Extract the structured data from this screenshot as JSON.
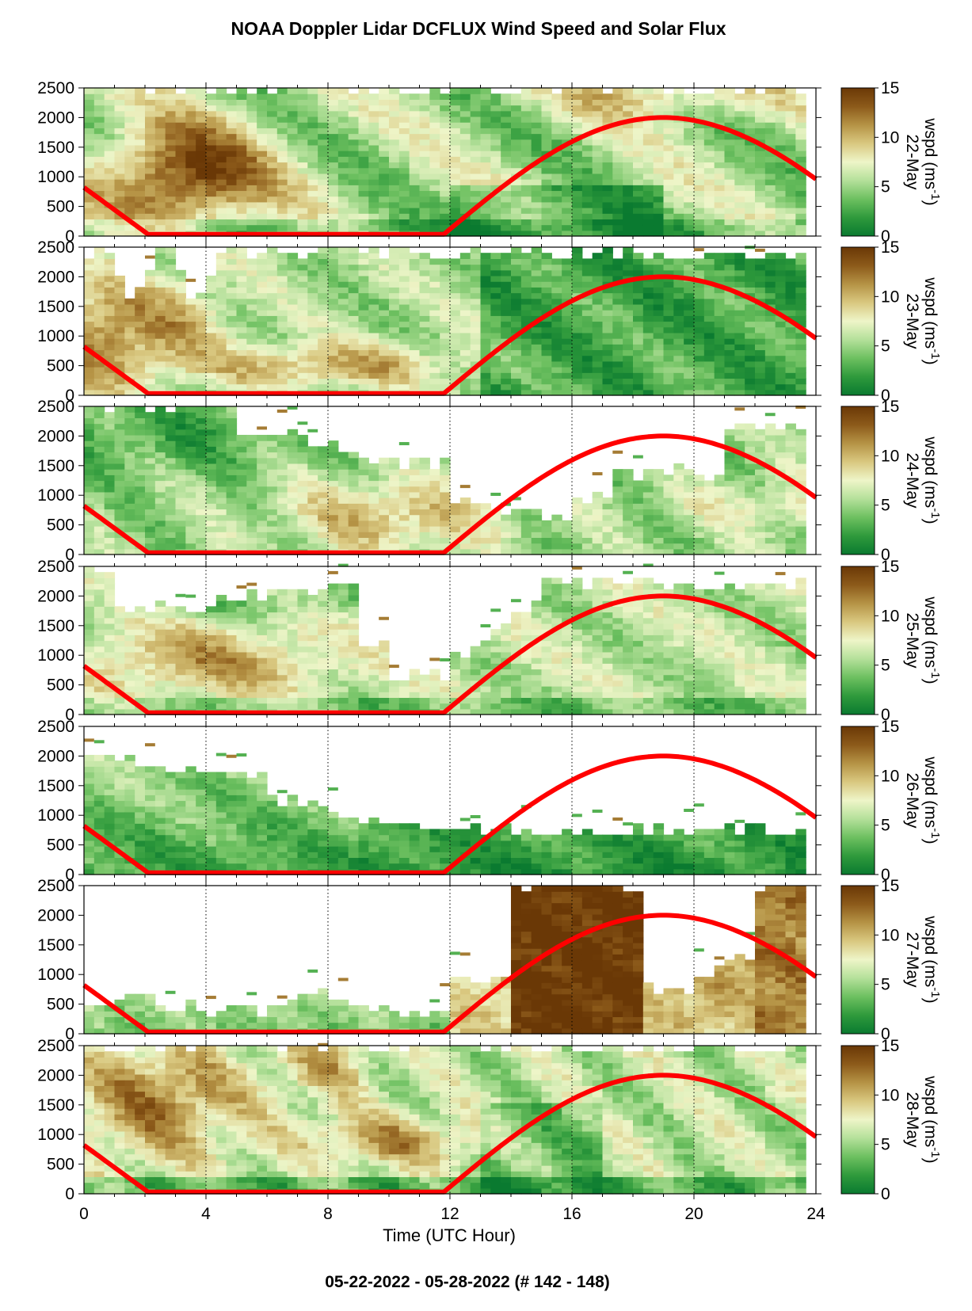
{
  "title": "NOAA Doppler Lidar DCFLUX Wind Speed and Solar Flux",
  "footer": "05-22-2022 - 05-28-2022   (# 142 - 148)",
  "chart_data": {
    "type": "heatmap",
    "xlabel": "Time (UTC Hour)",
    "xlim": [
      0,
      24
    ],
    "x_ticks": [
      "0",
      "4",
      "8",
      "12",
      "16",
      "20",
      "24"
    ],
    "ylim": [
      0,
      2500
    ],
    "y_ticks": [
      "0",
      "500",
      "1000",
      "1500",
      "2000",
      "2500"
    ],
    "colorbar": {
      "label": "wspd (ms",
      "superscript": "-1",
      "label_close": ")",
      "range": [
        0,
        15
      ],
      "ticks": [
        "0",
        "5",
        "10",
        "15"
      ],
      "colors": [
        "#0a7a30",
        "#2f9a3c",
        "#6dc060",
        "#b4e09a",
        "#eef5c8",
        "#d9c880",
        "#b59345",
        "#8c5a1a",
        "#6a3806"
      ]
    },
    "solar_flux_curve": {
      "color": "#ff0000",
      "description_points_hour_height": [
        [
          0,
          820
        ],
        [
          2.1,
          30
        ],
        [
          11.8,
          30
        ],
        [
          19,
          2000
        ],
        [
          24,
          960
        ]
      ]
    },
    "panels": [
      {
        "day": "22-May"
      },
      {
        "day": "23-May"
      },
      {
        "day": "24-May"
      },
      {
        "day": "25-May"
      },
      {
        "day": "26-May"
      },
      {
        "day": "27-May"
      },
      {
        "day": "28-May"
      }
    ]
  }
}
